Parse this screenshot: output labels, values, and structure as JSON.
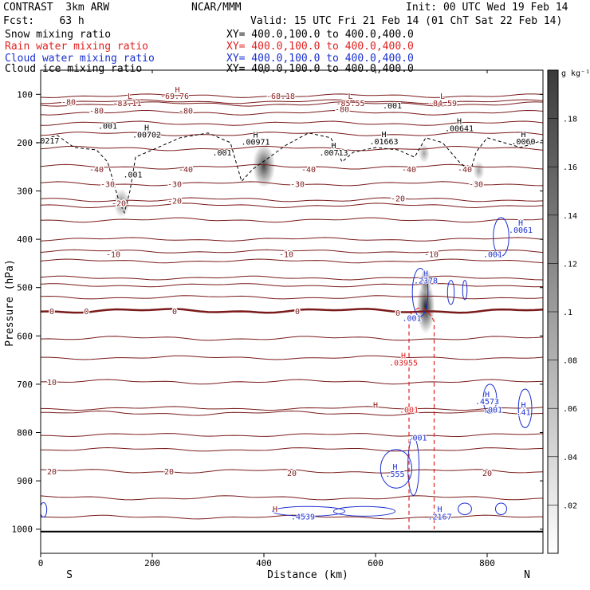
{
  "header": {
    "line1_left": "CONTRAST  3km ARW",
    "line1_mid": "NCAR/MMM",
    "line1_right": "Init: 00 UTC Wed 19 Feb 14",
    "line2_left": "Fcst:    63 h",
    "line2_right": "Valid: 15 UTC Fri 21 Feb 14 (01 ChT Sat 22 Feb 14)"
  },
  "fields": [
    {
      "label": "Snow mixing ratio",
      "xy": "XY= 400.0,100.0 to 400.0,400.0",
      "color": "#000000"
    },
    {
      "label": "Rain water mixing ratio",
      "xy": "XY= 400.0,100.0 to 400.0,400.0",
      "color": "#e02020"
    },
    {
      "label": "Cloud water mixing ratio",
      "xy": "XY= 400.0,100.0 to 400.0,400.0",
      "color": "#1a2fd0"
    },
    {
      "label": "Cloud ice mixing ratio",
      "xy": "XY= 400.0,100.0 to 400.0,400.0",
      "color": "#000000"
    }
  ],
  "chart_data": {
    "type": "cross-section",
    "xlabel": "Distance (km)",
    "ylabel": "Pressure (hPa)",
    "xlim": [
      0,
      900
    ],
    "ylim": [
      1050,
      50
    ],
    "x_ticks": [
      0,
      200,
      400,
      600,
      800
    ],
    "y_ticks": [
      100,
      200,
      300,
      400,
      500,
      600,
      700,
      800,
      900,
      1000
    ],
    "x_end_labels": {
      "left": "S",
      "right": "N"
    },
    "colorbar": {
      "unit": "g kg⁻¹",
      "min": 0,
      "max": 0.2,
      "ticks": [
        0.02,
        0.04,
        0.06,
        0.08,
        0.1,
        0.12,
        0.14,
        0.16,
        0.18
      ],
      "tick_labels": [
        ".02",
        ".04",
        ".06",
        ".08",
        ".1",
        ".12",
        ".14",
        ".16",
        ".18"
      ]
    },
    "temperature_contours": [
      {
        "value": -80,
        "label": "-80",
        "p": 120
      },
      {
        "value": -70,
        "label": "",
        "p": 138
      },
      {
        "value": -60,
        "label": "",
        "p": 160
      },
      {
        "value": -50,
        "label": "",
        "p": 182
      },
      {
        "value": -40,
        "label": "-40",
        "p": 212
      },
      {
        "value": -30,
        "label": "-30",
        "p": 250
      },
      {
        "value": -20,
        "label": "-20",
        "p": 285
      },
      {
        "value": -15,
        "label": "",
        "p": 318
      },
      {
        "value": -10,
        "label": "-10",
        "p": 330
      },
      {
        "value": -5,
        "label": "",
        "p": 360
      },
      {
        "value": 0,
        "label": "0",
        "p": 548
      },
      {
        "value": 5,
        "label": "",
        "p": 605
      },
      {
        "value": 10,
        "label": "10",
        "p": 695
      },
      {
        "value": 15,
        "label": "",
        "p": 760
      },
      {
        "value": 20,
        "label": "20",
        "p": 880
      },
      {
        "value": 25,
        "label": "",
        "p": 935
      }
    ],
    "extra_contours_p": [
      103,
      115,
      400,
      425,
      445,
      480,
      495,
      520,
      645,
      750,
      805,
      835,
      975
    ],
    "freezing_level_p": 548,
    "temp_labels": [
      {
        "text": "-80",
        "x": 50,
        "p": 115
      },
      {
        "text": "-80",
        "x": 100,
        "p": 133
      },
      {
        "text": "-80",
        "x": 260,
        "p": 133
      },
      {
        "text": "-80",
        "x": 540,
        "p": 130
      },
      {
        "text": "-40",
        "x": 100,
        "p": 255
      },
      {
        "text": "-40",
        "x": 260,
        "p": 255
      },
      {
        "text": "-40",
        "x": 480,
        "p": 255
      },
      {
        "text": "-40",
        "x": 660,
        "p": 255
      },
      {
        "text": "-40",
        "x": 760,
        "p": 255
      },
      {
        "text": "-30",
        "x": 120,
        "p": 285
      },
      {
        "text": "-30",
        "x": 240,
        "p": 285
      },
      {
        "text": "-30",
        "x": 460,
        "p": 285
      },
      {
        "text": "-30",
        "x": 780,
        "p": 285
      },
      {
        "text": "-20",
        "x": 140,
        "p": 325
      },
      {
        "text": "-20",
        "x": 240,
        "p": 320
      },
      {
        "text": "-20",
        "x": 640,
        "p": 315
      },
      {
        "text": "-10",
        "x": 130,
        "p": 430
      },
      {
        "text": "-10",
        "x": 440,
        "p": 430
      },
      {
        "text": "-10",
        "x": 700,
        "p": 430
      },
      {
        "text": "0",
        "x": 20,
        "p": 548
      },
      {
        "text": "0",
        "x": 82,
        "p": 548
      },
      {
        "text": "0",
        "x": 240,
        "p": 548
      },
      {
        "text": "0",
        "x": 460,
        "p": 548
      },
      {
        "text": "0",
        "x": 640,
        "p": 552
      },
      {
        "text": "10",
        "x": 20,
        "p": 695
      },
      {
        "text": "20",
        "x": 20,
        "p": 880
      },
      {
        "text": "20",
        "x": 230,
        "p": 880
      },
      {
        "text": "20",
        "x": 450,
        "p": 883
      },
      {
        "text": "20",
        "x": 800,
        "p": 883
      }
    ],
    "extrema_labels": [
      {
        "text": "L",
        "x": 160,
        "p": 103,
        "color": "#8b1a1a"
      },
      {
        "text": "-83.11",
        "x": 155,
        "p": 118,
        "color": "#8b1a1a"
      },
      {
        "text": "H",
        "x": 245,
        "p": 90,
        "color": "#8b1a1a"
      },
      {
        "text": "-69.76",
        "x": 240,
        "p": 103,
        "color": "#8b1a1a"
      },
      {
        "text": "-68.18",
        "x": 430,
        "p": 103,
        "color": "#8b1a1a"
      },
      {
        "text": "L",
        "x": 555,
        "p": 103,
        "color": "#8b1a1a"
      },
      {
        "text": "-85.55",
        "x": 555,
        "p": 118,
        "color": "#8b1a1a"
      },
      {
        "text": "L",
        "x": 720,
        "p": 103,
        "color": "#8b1a1a"
      },
      {
        "text": "-84.59",
        "x": 720,
        "p": 118,
        "color": "#8b1a1a"
      },
      {
        "text": "H",
        "x": 600,
        "p": 742,
        "color": "#8b1a1a"
      },
      {
        "text": "H",
        "x": 420,
        "p": 958,
        "color": "#8b1a1a"
      },
      {
        "text": ".001",
        "x": 630,
        "p": 123,
        "color": "#000000"
      },
      {
        "text": ".001",
        "x": 120,
        "p": 165,
        "color": "#000000"
      },
      {
        "text": "H",
        "x": 190,
        "p": 168,
        "color": "#000000"
      },
      {
        "text": ".00702",
        "x": 190,
        "p": 183,
        "color": "#000000"
      },
      {
        "text": "H",
        "x": 385,
        "p": 183,
        "color": "#000000"
      },
      {
        "text": ".00971",
        "x": 385,
        "p": 198,
        "color": "#000000"
      },
      {
        "text": "H",
        "x": 525,
        "p": 205,
        "color": "#000000"
      },
      {
        "text": ".00713",
        "x": 525,
        "p": 220,
        "color": "#000000"
      },
      {
        "text": "H",
        "x": 615,
        "p": 182,
        "color": "#000000"
      },
      {
        "text": ".01663",
        "x": 615,
        "p": 197,
        "color": "#000000"
      },
      {
        "text": "H",
        "x": 750,
        "p": 155,
        "color": "#000000"
      },
      {
        "text": ".00641",
        "x": 750,
        "p": 170,
        "color": "#000000"
      },
      {
        "text": "H",
        "x": 865,
        "p": 182,
        "color": "#000000"
      },
      {
        "text": ".0060",
        "x": 865,
        "p": 197,
        "color": "#000000"
      },
      {
        "text": ".0217",
        "x": 12,
        "p": 195,
        "color": "#000000"
      },
      {
        "text": ".001",
        "x": 325,
        "p": 220,
        "color": "#000000"
      },
      {
        "text": ".001",
        "x": 165,
        "p": 265,
        "color": "#000000"
      },
      {
        "text": "H",
        "x": 860,
        "p": 365,
        "color": "#1a2fd0"
      },
      {
        "text": ".0061",
        "x": 860,
        "p": 380,
        "color": "#1a2fd0"
      },
      {
        "text": ".001",
        "x": 810,
        "p": 430,
        "color": "#1a2fd0"
      },
      {
        "text": "H",
        "x": 690,
        "p": 470,
        "color": "#1a2fd0"
      },
      {
        "text": ".2378",
        "x": 690,
        "p": 485,
        "color": "#1a2fd0"
      },
      {
        "text": ".001",
        "x": 665,
        "p": 562,
        "color": "#1a2fd0"
      },
      {
        "text": "H",
        "x": 650,
        "p": 640,
        "color": "#e02020"
      },
      {
        "text": ".03955",
        "x": 650,
        "p": 655,
        "color": "#e02020"
      },
      {
        "text": ".001",
        "x": 660,
        "p": 752,
        "color": "#e02020"
      },
      {
        "text": "H",
        "x": 800,
        "p": 720,
        "color": "#1a2fd0"
      },
      {
        "text": ".4573",
        "x": 800,
        "p": 735,
        "color": "#1a2fd0"
      },
      {
        "text": ".001",
        "x": 810,
        "p": 752,
        "color": "#1a2fd0"
      },
      {
        "text": "H",
        "x": 865,
        "p": 742,
        "color": "#1a2fd0"
      },
      {
        "text": ".41",
        "x": 865,
        "p": 757,
        "color": "#1a2fd0"
      },
      {
        "text": ".001",
        "x": 675,
        "p": 810,
        "color": "#1a2fd0"
      },
      {
        "text": "H",
        "x": 635,
        "p": 870,
        "color": "#1a2fd0"
      },
      {
        "text": ".555",
        "x": 635,
        "p": 885,
        "color": "#1a2fd0"
      },
      {
        "text": "H",
        "x": 715,
        "p": 958,
        "color": "#1a2fd0"
      },
      {
        "text": ".2167",
        "x": 715,
        "p": 973,
        "color": "#1a2fd0"
      },
      {
        "text": ".4539",
        "x": 470,
        "p": 973,
        "color": "#1a2fd0"
      }
    ],
    "snow_shading": [
      {
        "x": 145,
        "p": 325,
        "sx": 14,
        "sp": 30,
        "v": 0.06
      },
      {
        "x": 400,
        "p": 248,
        "sx": 20,
        "sp": 45,
        "v": 0.12
      },
      {
        "x": 690,
        "p": 540,
        "sx": 16,
        "sp": 55,
        "v": 0.15
      },
      {
        "x": 690,
        "p": 485,
        "sx": 10,
        "sp": 25,
        "v": 0.1
      },
      {
        "x": 687,
        "p": 222,
        "sx": 10,
        "sp": 20,
        "v": 0.04
      },
      {
        "x": 785,
        "p": 258,
        "sx": 10,
        "sp": 20,
        "v": 0.04
      }
    ],
    "ice_contour_p": [
      [
        0,
        195
      ],
      [
        30,
        185
      ],
      [
        60,
        210
      ],
      [
        100,
        215
      ],
      [
        120,
        240
      ],
      [
        140,
        320
      ],
      [
        150,
        345
      ],
      [
        160,
        300
      ],
      [
        170,
        230
      ],
      [
        210,
        210
      ],
      [
        250,
        190
      ],
      [
        300,
        180
      ],
      [
        340,
        200
      ],
      [
        360,
        280
      ],
      [
        380,
        255
      ],
      [
        410,
        230
      ],
      [
        440,
        205
      ],
      [
        480,
        180
      ],
      [
        520,
        190
      ],
      [
        540,
        240
      ],
      [
        560,
        220
      ],
      [
        600,
        210
      ],
      [
        640,
        215
      ],
      [
        670,
        230
      ],
      [
        690,
        190
      ],
      [
        720,
        200
      ],
      [
        750,
        240
      ],
      [
        770,
        260
      ],
      [
        780,
        220
      ],
      [
        800,
        190
      ],
      [
        830,
        200
      ],
      [
        860,
        210
      ],
      [
        900,
        195
      ]
    ],
    "rain_columns_x": [
      660,
      705
    ]
  }
}
